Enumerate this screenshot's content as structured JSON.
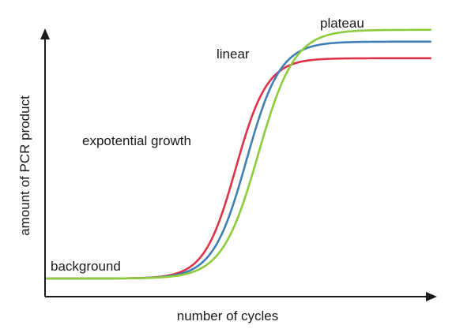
{
  "chart_data": {
    "type": "line",
    "xlabel": "number of cycles",
    "ylabel": "amount of PCR product",
    "xlim": [
      0,
      40
    ],
    "ylim": [
      0,
      1
    ],
    "grid": false,
    "annotations": [
      {
        "id": "background",
        "text": "background"
      },
      {
        "id": "exponential",
        "text": "expotential growth"
      },
      {
        "id": "linear",
        "text": "linear"
      },
      {
        "id": "plateau",
        "text": "plateau"
      }
    ],
    "series": [
      {
        "color": "#e0314b",
        "midpoint": 19.5,
        "steepness": 0.62,
        "max": 0.93
      },
      {
        "color": "#3f7fb5",
        "midpoint": 20.6,
        "steepness": 0.58,
        "max": 1.0
      },
      {
        "color": "#8ccc3a",
        "midpoint": 21.8,
        "steepness": 0.54,
        "max": 1.05
      }
    ]
  }
}
